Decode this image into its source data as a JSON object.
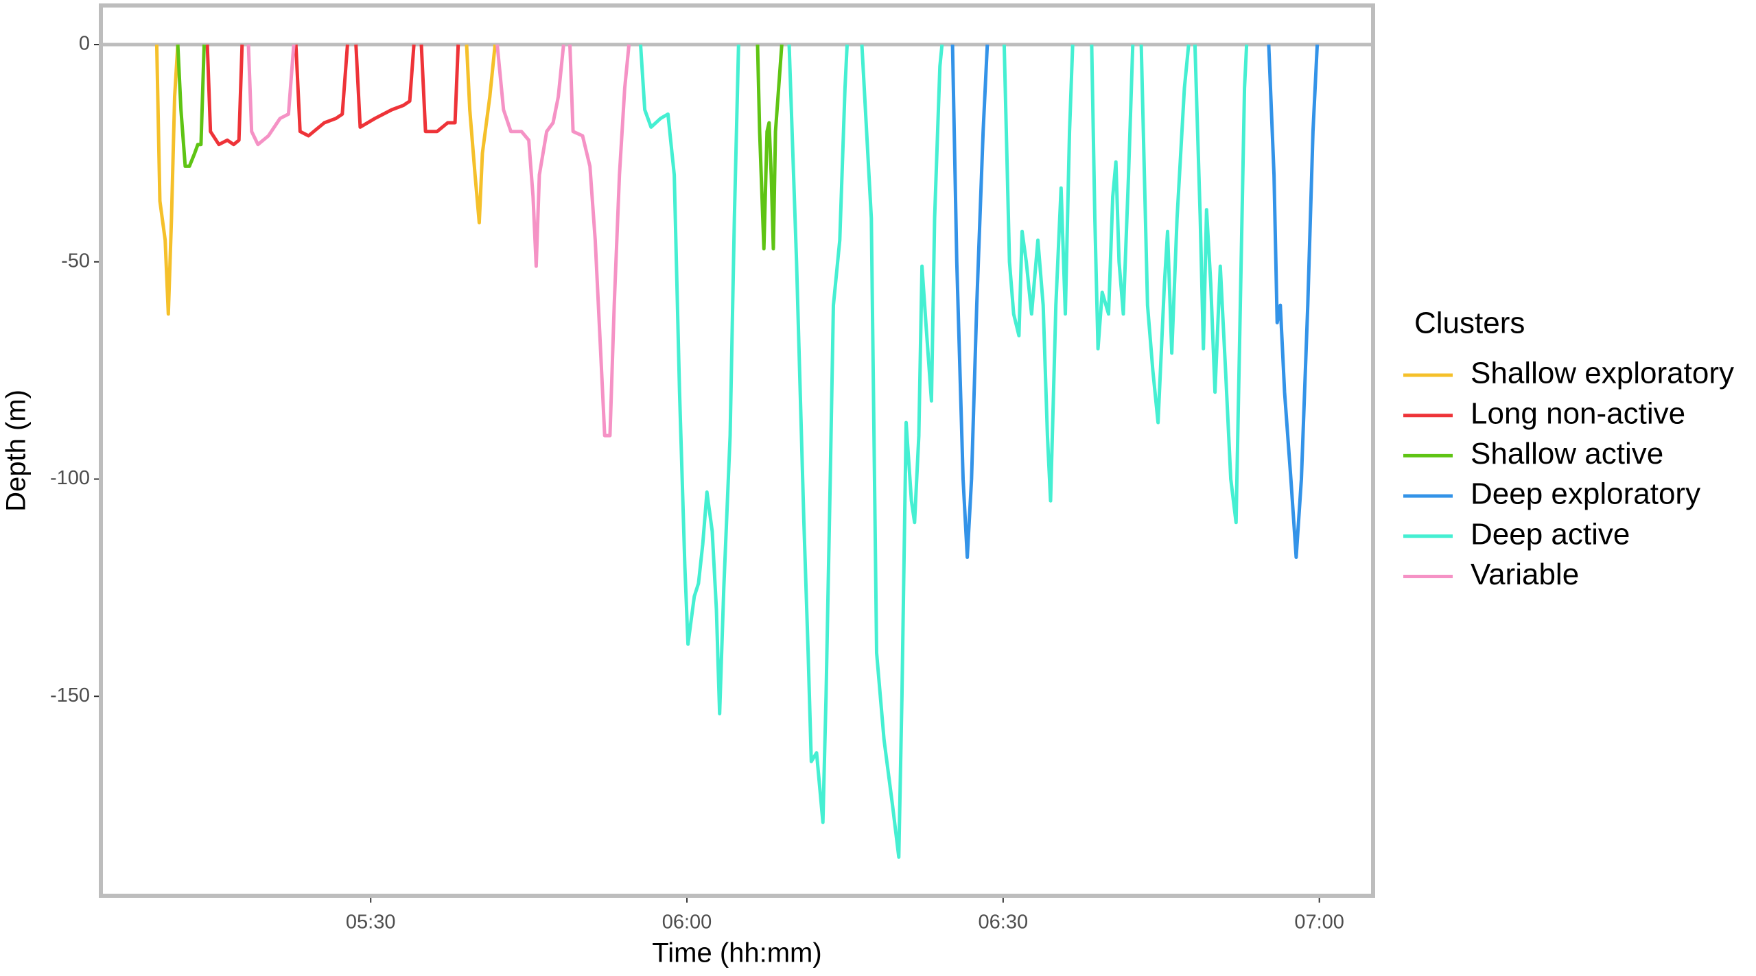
{
  "chart_data": {
    "type": "line",
    "x_label": "Time (hh:mm)",
    "y_label": "Depth (m)",
    "legend_title": "Clusters",
    "legend": "right",
    "xlim": [
      304.4,
      425.1
    ],
    "ylim": [
      -195.9,
      9
    ],
    "xticks": [
      {
        "value": 330,
        "label": "05:30"
      },
      {
        "value": 360,
        "label": "06:00"
      },
      {
        "value": 390,
        "label": "06:30"
      },
      {
        "value": 420,
        "label": "07:00"
      }
    ],
    "yticks": [
      0,
      -50,
      -100,
      -150
    ],
    "reference_line": 0,
    "grid": false,
    "series": [
      {
        "name": "Shallow exploratory",
        "color": "#F5C02A",
        "x": [
          309.7,
          310.0,
          310.5,
          310.8,
          311.1,
          311.4,
          311.7,
          311.7,
          339.1,
          339.4,
          339.9,
          340.3,
          340.6,
          341.3,
          341.8
        ],
        "values": [
          0,
          -36,
          -45,
          -62,
          -40,
          -12,
          0,
          null,
          0,
          -15,
          -30,
          -41,
          -25,
          -12,
          0
        ]
      },
      {
        "name": "Long non-active",
        "color": "#EE3338",
        "x": [
          314.5,
          314.8,
          315.6,
          316.4,
          317.0,
          317.5,
          317.8,
          317.8,
          322.9,
          323.3,
          324.1,
          325.6,
          326.7,
          327.3,
          327.8,
          327.8,
          328.6,
          329.0,
          330.4,
          332.0,
          333.1,
          333.7,
          334.1,
          334.1,
          334.8,
          335.2,
          336.3,
          337.3,
          338.0,
          338.3
        ],
        "values": [
          0,
          -20,
          -23,
          -22,
          -23,
          -22,
          0,
          null,
          0,
          -20,
          -21,
          -18,
          -17,
          -16,
          0,
          null,
          0,
          -19,
          -17,
          -15,
          -14,
          -13,
          0,
          null,
          0,
          -20,
          -20,
          -18,
          -18,
          0
        ]
      },
      {
        "name": "Shallow active",
        "color": "#5FC414",
        "x": [
          311.7,
          312.0,
          312.4,
          312.8,
          313.3,
          313.6,
          313.9,
          314.2,
          314.2,
          366.7,
          366.9,
          367.3,
          367.6,
          367.8,
          368.0,
          368.2,
          368.4,
          369.0
        ],
        "values": [
          0,
          -15,
          -28,
          -28,
          -25,
          -23,
          -23,
          0,
          null,
          0,
          -20,
          -47,
          -20,
          -18,
          -30,
          -47,
          -20,
          0
        ]
      },
      {
        "name": "Deep exploratory",
        "color": "#3393E8",
        "x": [
          385.2,
          385.6,
          386.2,
          386.6,
          387.0,
          387.5,
          388.1,
          388.5,
          388.5,
          415.2,
          415.7,
          416.0,
          416.3,
          416.7,
          417.3,
          417.8,
          418.3,
          418.9,
          419.4,
          419.8
        ],
        "values": [
          0,
          -50,
          -100,
          -118,
          -100,
          -60,
          -20,
          0,
          null,
          0,
          -30,
          -64,
          -60,
          -80,
          -100,
          -118,
          -100,
          -60,
          -20,
          0
        ]
      },
      {
        "name": "Deep active",
        "color": "#45EFD2",
        "x": [
          355.6,
          356.0,
          356.6,
          357.5,
          358.2,
          358.8,
          359.3,
          359.8,
          360.1,
          360.7,
          361.1,
          361.5,
          361.9,
          362.4,
          362.8,
          363.1,
          363.5,
          364.1,
          364.5,
          364.9,
          364.9,
          369.7,
          370.4,
          371.1,
          371.5,
          371.8,
          372.3,
          372.9,
          373.2,
          373.6,
          373.9,
          374.5,
          375.0,
          375.2,
          375.2,
          376.6,
          377.5,
          378.0,
          378.7,
          379.5,
          380.1,
          380.4,
          380.8,
          381.3,
          381.6,
          382.0,
          382.3,
          382.7,
          383.2,
          383.5,
          384.0,
          384.2,
          384.2,
          390.1,
          390.6,
          391.0,
          391.5,
          391.8,
          392.2,
          392.7,
          393.3,
          393.8,
          394.2,
          394.5,
          395.0,
          395.5,
          395.9,
          396.3,
          396.6,
          396.6,
          398.4,
          398.7,
          399.0,
          399.4,
          400.0,
          400.4,
          400.7,
          401.0,
          401.4,
          401.9,
          402.3,
          402.3,
          403.1,
          403.7,
          404.2,
          404.7,
          405.3,
          405.6,
          406.0,
          406.5,
          407.2,
          407.6,
          407.6,
          408.2,
          408.7,
          409.0,
          409.3,
          409.7,
          410.1,
          410.6,
          411.1,
          411.6,
          412.1,
          412.5,
          412.9,
          413.1
        ],
        "values": [
          0,
          -15,
          -19,
          -17,
          -16,
          -30,
          -80,
          -120,
          -138,
          -127,
          -124,
          -115,
          -103,
          -112,
          -130,
          -154,
          -125,
          -90,
          -40,
          0,
          null,
          0,
          -50,
          -110,
          -140,
          -165,
          -163,
          -179,
          -150,
          -100,
          -60,
          -45,
          -10,
          0,
          null,
          0,
          -40,
          -140,
          -160,
          -175,
          -187,
          -150,
          -87,
          -105,
          -110,
          -90,
          -51,
          -65,
          -82,
          -40,
          -5,
          0,
          null,
          0,
          -50,
          -62,
          -67,
          -43,
          -50,
          -62,
          -45,
          -60,
          -90,
          -105,
          -60,
          -33,
          -62,
          -20,
          0,
          null,
          0,
          -40,
          -70,
          -57,
          -62,
          -35,
          -27,
          -50,
          -62,
          -30,
          0,
          null,
          0,
          -60,
          -75,
          -87,
          -55,
          -43,
          -71,
          -40,
          -10,
          0,
          null,
          0,
          -40,
          -70,
          -38,
          -55,
          -80,
          -51,
          -75,
          -100,
          -110,
          -60,
          -10,
          0
        ]
      },
      {
        "name": "Variable",
        "color": "#F592C5",
        "x": [
          318.4,
          318.7,
          319.3,
          320.3,
          321.4,
          322.2,
          322.7,
          322.7,
          342.0,
          342.6,
          343.3,
          344.3,
          345.0,
          345.4,
          345.7,
          346.0,
          346.7,
          347.3,
          347.8,
          348.3,
          348.3,
          348.9,
          349.2,
          350.1,
          350.8,
          351.3,
          351.8,
          352.2,
          352.7,
          353.1,
          353.6,
          354.1,
          354.5
        ],
        "values": [
          0,
          -20,
          -23,
          -21,
          -17,
          -16,
          0,
          null,
          0,
          -15,
          -20,
          -20,
          -22,
          -35,
          -51,
          -30,
          -20,
          -18,
          -12,
          0,
          null,
          0,
          -20,
          -21,
          -28,
          -45,
          -70,
          -90,
          -90,
          -60,
          -30,
          -10,
          0
        ]
      }
    ]
  }
}
